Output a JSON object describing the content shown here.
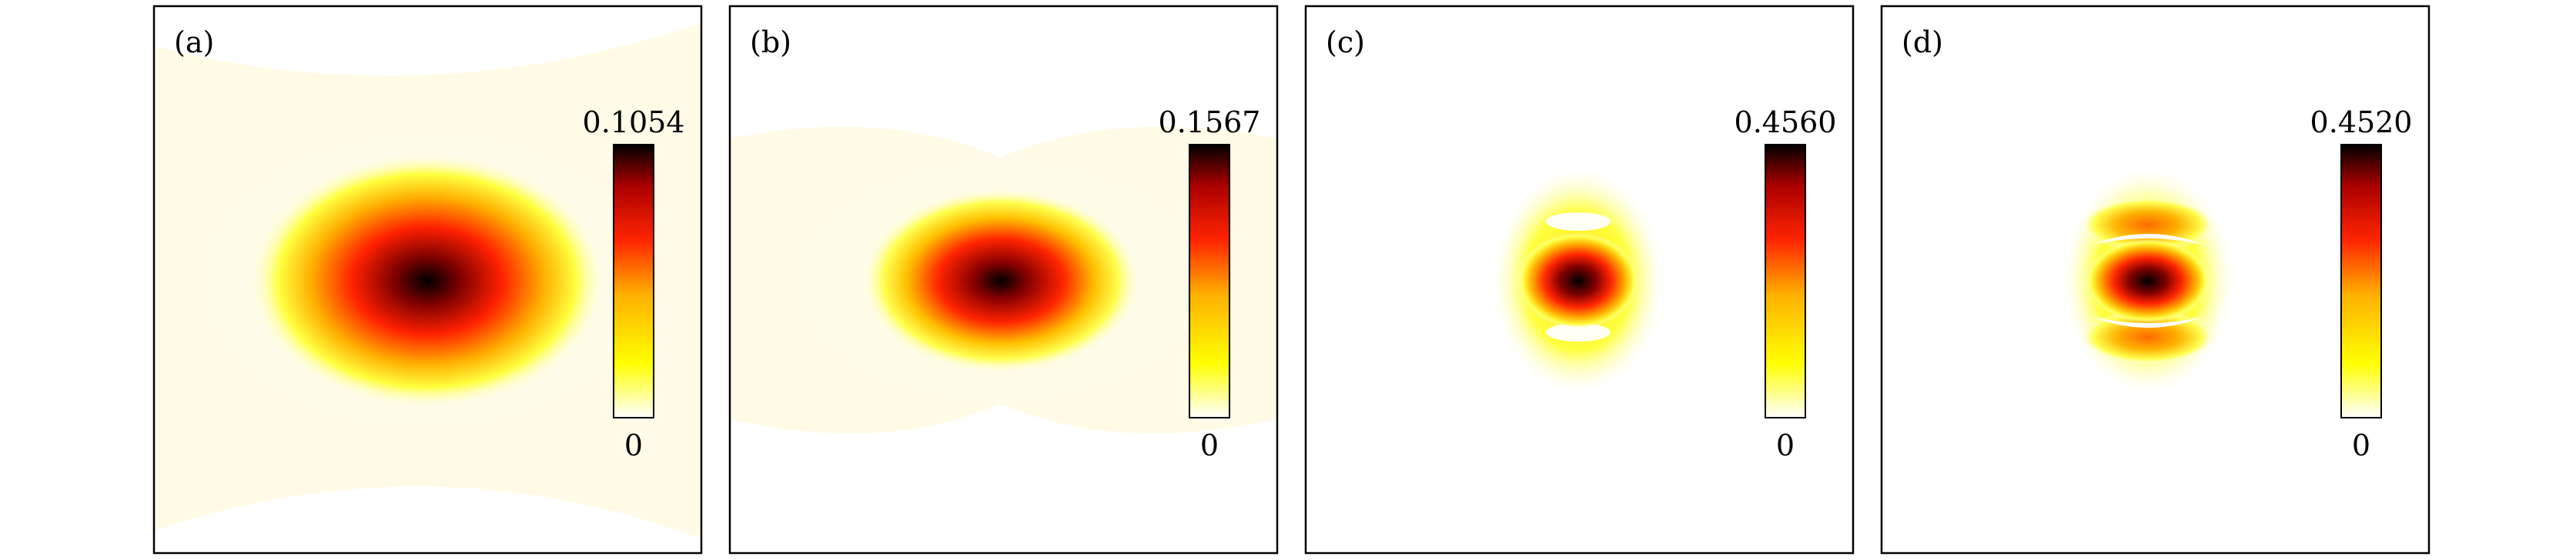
{
  "chart_data": [
    {
      "type": "heatmap",
      "panel_label": "(a)",
      "colormap": "hot (white-yellow-red-black)",
      "colorbar": {
        "max": 0.1054,
        "min": 0,
        "max_label": "0.1054",
        "min_label": "0"
      },
      "pattern": "single broad elliptical spot with faint background halo",
      "peak_value": 0.1054,
      "grid": false
    },
    {
      "type": "heatmap",
      "panel_label": "(b)",
      "colormap": "hot (white-yellow-red-black)",
      "colorbar": {
        "max": 0.1567,
        "min": 0,
        "max_label": "0.1567",
        "min_label": "0"
      },
      "pattern": "elliptical spot, narrower, with faint halo",
      "peak_value": 0.1567,
      "grid": false
    },
    {
      "type": "heatmap",
      "panel_label": "(c)",
      "colormap": "hot (white-yellow-red-black)",
      "colorbar": {
        "max": 0.456,
        "min": 0,
        "max_label": "0.4560",
        "min_label": "0"
      },
      "pattern": "compact spot with upper and lower side lobes",
      "peak_value": 0.456,
      "grid": false
    },
    {
      "type": "heatmap",
      "panel_label": "(d)",
      "colormap": "hot (white-yellow-red-black)",
      "colorbar": {
        "max": 0.452,
        "min": 0,
        "max_label": "0.4520",
        "min_label": "0"
      },
      "pattern": "compact spot with curved upper and lower side lobes",
      "peak_value": 0.452,
      "grid": false
    }
  ],
  "colors": {
    "frame": "#000000",
    "background": "#ffffff",
    "hot_scale": [
      "#ffffff",
      "#ffff00",
      "#ffb000",
      "#ff2400",
      "#aa0000",
      "#000000"
    ]
  }
}
